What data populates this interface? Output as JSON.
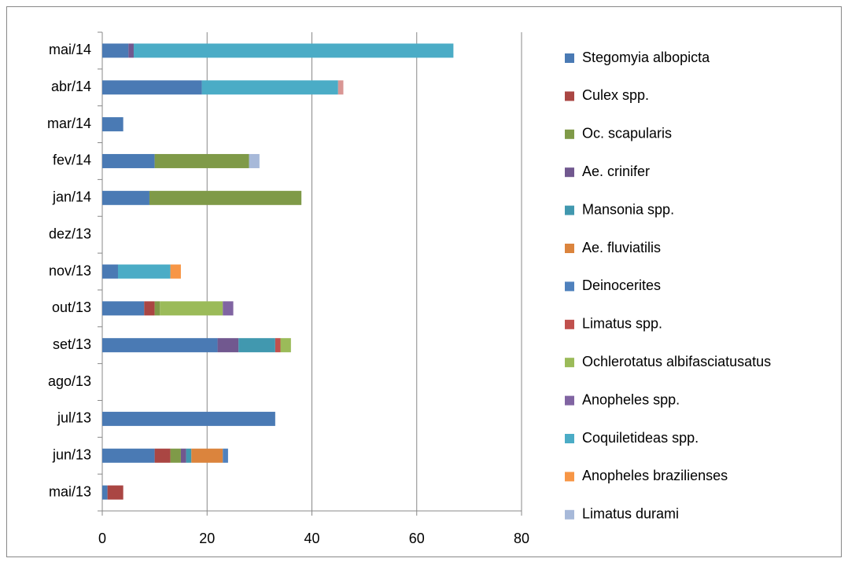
{
  "chart_data": {
    "type": "stacked-bar-horizontal",
    "categories": [
      "mai/13",
      "jun/13",
      "jul/13",
      "ago/13",
      "set/13",
      "out/13",
      "nov/13",
      "dez/13",
      "jan/14",
      "fev/14",
      "mar/14",
      "abr/14",
      "mai/14"
    ],
    "series": [
      {
        "name": "Stegomyia albopicta",
        "color": "#4a7ab4",
        "values": [
          1,
          10,
          33,
          0,
          22,
          8,
          3,
          0,
          9,
          10,
          4,
          19,
          5
        ]
      },
      {
        "name": "Culex spp.",
        "color": "#aa4643",
        "values": [
          3,
          3,
          0,
          0,
          0,
          2,
          0,
          0,
          0,
          0,
          0,
          0,
          0
        ]
      },
      {
        "name": "Oc. scapularis",
        "color": "#7f9a48",
        "values": [
          0,
          2,
          0,
          0,
          0,
          1,
          0,
          0,
          29,
          18,
          0,
          0,
          0
        ]
      },
      {
        "name": "Ae. crinifer",
        "color": "#71588f",
        "values": [
          0,
          1,
          0,
          0,
          4,
          0,
          0,
          0,
          0,
          0,
          0,
          0,
          1
        ]
      },
      {
        "name": "Mansonia spp.",
        "color": "#4198af",
        "values": [
          0,
          1,
          0,
          0,
          7,
          0,
          0,
          0,
          0,
          0,
          0,
          0,
          0
        ]
      },
      {
        "name": "Ae. fluviatilis",
        "color": "#db843d",
        "values": [
          0,
          6,
          0,
          0,
          0,
          0,
          0,
          0,
          0,
          0,
          0,
          0,
          0
        ]
      },
      {
        "name": "Deinocerites",
        "color": "#4f81bd",
        "values": [
          0,
          1,
          0,
          0,
          0,
          0,
          0,
          0,
          0,
          0,
          0,
          0,
          0
        ]
      },
      {
        "name": "Limatus spp.",
        "color": "#c0504d",
        "values": [
          0,
          0,
          0,
          0,
          1,
          0,
          0,
          0,
          0,
          0,
          0,
          0,
          0
        ]
      },
      {
        "name": "Ochlerotatus albifasciatusatus",
        "color": "#9bbb59",
        "values": [
          0,
          0,
          0,
          0,
          2,
          12,
          0,
          0,
          0,
          0,
          0,
          0,
          0
        ]
      },
      {
        "name": "Anopheles spp.",
        "color": "#8064a2",
        "values": [
          0,
          0,
          0,
          0,
          0,
          2,
          0,
          0,
          0,
          0,
          0,
          0,
          0
        ]
      },
      {
        "name": "Coquiletideas spp.",
        "color": "#4bacc6",
        "values": [
          0,
          0,
          0,
          0,
          0,
          0,
          10,
          0,
          0,
          0,
          0,
          26,
          61
        ]
      },
      {
        "name": "Anopheles brazilienses",
        "color": "#f79646",
        "values": [
          0,
          0,
          0,
          0,
          0,
          0,
          2,
          0,
          0,
          0,
          0,
          0,
          0
        ]
      },
      {
        "name": "Limatus durami",
        "color": "#a7b9d9",
        "values": [
          0,
          0,
          0,
          0,
          0,
          0,
          0,
          0,
          0,
          2,
          0,
          0,
          0
        ]
      },
      {
        "name": null,
        "color": "#d99694",
        "values": [
          0,
          0,
          0,
          0,
          0,
          0,
          0,
          0,
          0,
          0,
          0,
          1,
          0
        ]
      }
    ],
    "xlim": [
      0,
      80
    ],
    "xticks": [
      0,
      20,
      40,
      60,
      80
    ],
    "grid": true
  }
}
